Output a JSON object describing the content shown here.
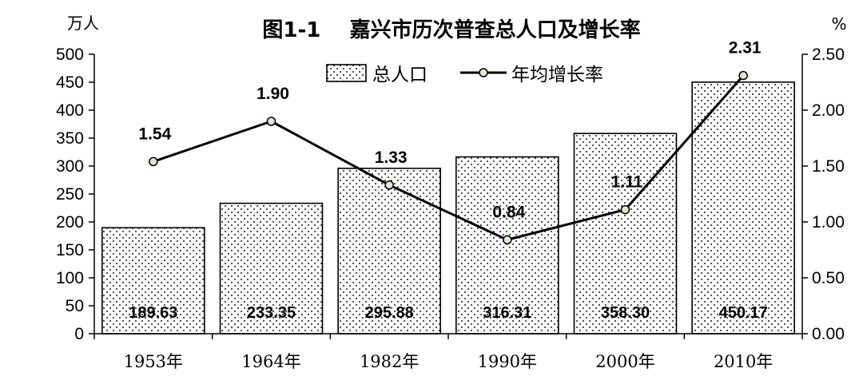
{
  "chart_data": {
    "type": "bar+line",
    "title": "图1-1    嘉兴市历次普查总人口及增长率",
    "y_left_unit": "万人",
    "y_right_unit": "%",
    "categories": [
      "1953年",
      "1964年",
      "1982年",
      "1990年",
      "2000年",
      "2010年"
    ],
    "series": [
      {
        "name": "总人口",
        "type": "bar",
        "axis": "left",
        "values": [
          189.63,
          233.35,
          295.88,
          316.31,
          358.3,
          450.17
        ],
        "labels": [
          "189.63",
          "233.35",
          "295.88",
          "316.31",
          "358.30",
          "450.17"
        ]
      },
      {
        "name": "年均增长率",
        "type": "line",
        "axis": "right",
        "values": [
          1.54,
          1.9,
          1.33,
          0.84,
          1.11,
          2.31
        ],
        "labels": [
          "1.54",
          "1.90",
          "1.33",
          "0.84",
          "1.11",
          "2.31"
        ]
      }
    ],
    "y_left": {
      "range": [
        0,
        500
      ],
      "ticks": [
        0,
        50,
        100,
        150,
        200,
        250,
        300,
        350,
        400,
        450,
        500
      ],
      "tick_labels": [
        "0",
        "50",
        "100",
        "150",
        "200",
        "250",
        "300",
        "350",
        "400",
        "450",
        "500"
      ]
    },
    "y_right": {
      "range": [
        0,
        2.5
      ],
      "ticks": [
        0,
        0.5,
        1.0,
        1.5,
        2.0,
        2.5
      ],
      "tick_labels": [
        "0.00",
        "0.50",
        "1.00",
        "1.50",
        "2.00",
        "2.50"
      ]
    },
    "grid": false,
    "legend_position": "top-center",
    "colors": {
      "bar_fill": "#ffffff",
      "bar_pattern_dot": "#222222",
      "bar_outline": "#000000",
      "line": "#000000",
      "marker_fill": "#d7ecd0"
    }
  }
}
